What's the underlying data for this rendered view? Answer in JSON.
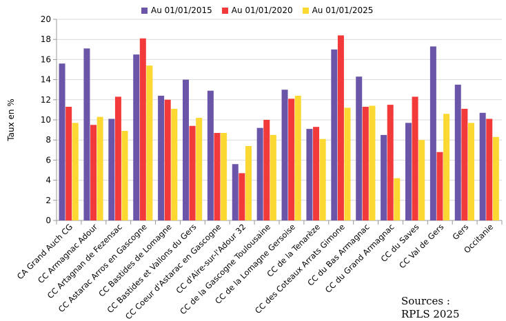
{
  "chart_data": {
    "type": "bar",
    "title": "",
    "xlabel": "",
    "ylabel": "Taux en %",
    "ylim": [
      0,
      20
    ],
    "yticks": [
      0,
      2,
      4,
      6,
      8,
      10,
      12,
      14,
      16,
      18,
      20
    ],
    "grid": true,
    "legend_position": "top",
    "categories": [
      "CA Grand Auch CG",
      "CC Armagnac Adour",
      "CC Artagnan de Fezensac",
      "CC Astarac Arros en Gascogne",
      "CC Bastides de Lomagne",
      "CC Bastides et Vallons du Gers",
      "CC Coeur d'Astarac en Gascogne",
      "CC d'Aire-sur-l'Adour 32",
      "CC de la Gascogne Toulousaine",
      "CC de la Lomagne Gersoise",
      "CC de la Tenarèze",
      "CC des Coteaux Arrats Gimone",
      "CC du Bas Armagnac",
      "CC du Grand Armagnac",
      "CC du Saves",
      "CC Val de Gers",
      "Gers",
      "Occitanie"
    ],
    "series": [
      {
        "name": "Au 01/01/2015",
        "color": "#6b55a8",
        "values": [
          15.6,
          17.1,
          10.1,
          16.5,
          12.4,
          14.0,
          12.9,
          5.6,
          9.2,
          13.0,
          9.1,
          17.0,
          14.3,
          8.5,
          9.7,
          17.3,
          13.5,
          10.7
        ]
      },
      {
        "name": "Au 01/01/2020",
        "color": "#f23a3a",
        "values": [
          11.3,
          9.5,
          12.3,
          18.1,
          12.0,
          9.4,
          8.7,
          4.7,
          10.0,
          12.1,
          9.3,
          18.4,
          11.3,
          11.5,
          12.3,
          6.8,
          11.1,
          10.1
        ]
      },
      {
        "name": "Au 01/01/2025",
        "color": "#fbd832",
        "values": [
          9.7,
          10.3,
          8.9,
          15.4,
          11.1,
          10.2,
          8.7,
          7.4,
          8.5,
          12.4,
          8.1,
          11.2,
          11.4,
          4.2,
          8.0,
          10.6,
          9.7,
          8.3
        ]
      }
    ]
  },
  "sources_line1": "Sources :",
  "sources_line2": "RPLS 2025"
}
